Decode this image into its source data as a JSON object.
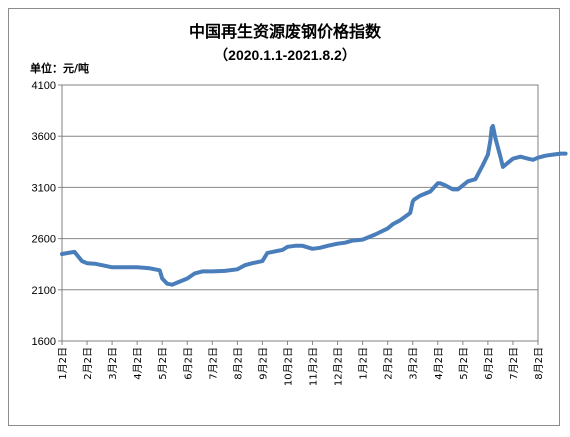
{
  "chart_data": {
    "type": "line",
    "title": "中国再生资源废钢价格指数",
    "subtitle": "（2020.1.1-2021.8.2）",
    "unit_label": "单位：元/吨",
    "ylim": [
      1600,
      4100
    ],
    "yticks": [
      1600,
      2100,
      2600,
      3100,
      3600,
      4100
    ],
    "grid": "horizontal",
    "legend": "none",
    "line_color": "#4a7ebb",
    "categories": [
      "1月2日",
      "2月2日",
      "3月2日",
      "4月2日",
      "5月2日",
      "6月2日",
      "7月2日",
      "8月2日",
      "9月2日",
      "10月2日",
      "11月2日",
      "12月2日",
      "1月2日",
      "2月2日",
      "3月2日",
      "4月2日",
      "5月2日",
      "6月2日",
      "7月2日",
      "8月2日"
    ],
    "x": [
      0,
      0.25,
      0.5,
      0.8,
      1,
      1.3,
      1.6,
      2,
      2.5,
      3,
      3.5,
      3.9,
      4,
      4.2,
      4.4,
      4.6,
      5,
      5.3,
      5.6,
      6,
      6.5,
      7,
      7.3,
      7.6,
      8,
      8.2,
      8.4,
      8.6,
      8.8,
      9,
      9.3,
      9.6,
      10,
      10.3,
      10.6,
      11,
      11.3,
      11.6,
      12,
      12.2,
      12.5,
      13,
      13.2,
      13.5,
      13.9,
      14,
      14.05,
      14.3,
      14.7,
      15,
      15.1,
      15.3,
      15.6,
      15.8,
      16,
      16.2,
      16.5,
      16.8,
      17,
      17.1,
      17.15,
      17.2,
      17.3,
      17.5,
      17.6,
      17.8,
      18,
      18.3,
      18.6,
      18.8,
      19,
      19.3,
      19.6,
      19.9,
      20.1
    ],
    "y": [
      2450,
      2460,
      2470,
      2380,
      2360,
      2355,
      2340,
      2320,
      2320,
      2320,
      2310,
      2290,
      2210,
      2160,
      2150,
      2170,
      2210,
      2260,
      2280,
      2280,
      2285,
      2300,
      2340,
      2360,
      2380,
      2460,
      2470,
      2480,
      2490,
      2520,
      2530,
      2530,
      2500,
      2510,
      2530,
      2550,
      2560,
      2580,
      2590,
      2610,
      2640,
      2700,
      2740,
      2780,
      2850,
      2960,
      2980,
      3020,
      3060,
      3140,
      3140,
      3120,
      3080,
      3080,
      3120,
      3160,
      3180,
      3320,
      3420,
      3560,
      3680,
      3700,
      3580,
      3400,
      3300,
      3340,
      3380,
      3400,
      3380,
      3370,
      3390,
      3410,
      3420,
      3430,
      3430
    ]
  }
}
